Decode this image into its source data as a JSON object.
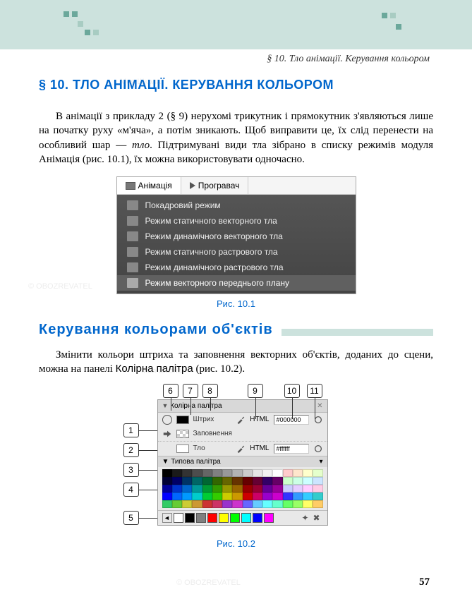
{
  "header": {
    "section_label": "§ 10. Тло анімації. Керування кольором"
  },
  "heading": "§ 10. ТЛО АНІМАЦІЇ. КЕРУВАННЯ КОЛЬОРОМ",
  "para1_a": "В анімації з прикладу 2 (§ 9) нерухомі трикутник і прямокут­ник з'являються лише на початку руху «м'яча», а потім зника­ють. Щоб виправити це, їх слід перенести на особливий шар — ",
  "para1_em": "тло",
  "para1_b": ". Підтримувані види тла зібрано в списку режимів модуля Анімація (рис. 10.1), їх можна використовувати одночасно.",
  "fig1": {
    "tabs": {
      "animation": "Анімація",
      "player": "Програвач"
    },
    "items": [
      "Покадровий режим",
      "Режим статичного векторного тла",
      "Режим динамічного векторного тла",
      "Режим статичного растрового тла",
      "Режим динамічного растрового тла",
      "Режим векторного переднього плану"
    ],
    "caption": "Рис. 10.1"
  },
  "sub_heading": "Керування кольорами об'єктів",
  "para2_a": "Змінити кольори штриха та заповнення векторних об'єктів, доданих до сцени, можна на панелі ",
  "para2_b": "Колірна палітра",
  "para2_c": " (рис. 10.2).",
  "fig2": {
    "panel_title": "Колірна палітра",
    "stroke_label": "Штрих",
    "fill_label": "Заповнення",
    "bg_label": "Тло",
    "html_label": "HTML",
    "html_value_stroke": "#000000",
    "html_value_bg": "#ffffff",
    "palette_title": "Типова палітра",
    "caption": "Рис. 10.2",
    "callouts": {
      "c1": "1",
      "c2": "2",
      "c3": "3",
      "c4": "4",
      "c5": "5",
      "c6": "6",
      "c7": "7",
      "c8": "8",
      "c9": "9",
      "c10": "10",
      "c11": "11"
    },
    "palette_colors": [
      "#000000",
      "#1a1a1a",
      "#333333",
      "#4d4d4d",
      "#666666",
      "#808080",
      "#999999",
      "#b3b3b3",
      "#cccccc",
      "#e6e6e6",
      "#f2f2f2",
      "#ffffff",
      "#ffcccc",
      "#ffe5cc",
      "#ffffcc",
      "#e5ffcc",
      "#000033",
      "#000066",
      "#003366",
      "#006666",
      "#006633",
      "#336600",
      "#666600",
      "#663300",
      "#660000",
      "#660033",
      "#330066",
      "#660066",
      "#ccffcc",
      "#ccffe5",
      "#ccffff",
      "#cce5ff",
      "#000099",
      "#0033cc",
      "#0066cc",
      "#009999",
      "#009933",
      "#339900",
      "#999900",
      "#996600",
      "#990000",
      "#990033",
      "#660099",
      "#990099",
      "#ccccff",
      "#e5ccff",
      "#ffccff",
      "#ffcce5",
      "#0000ff",
      "#0066ff",
      "#0099ff",
      "#00cccc",
      "#00cc33",
      "#33cc00",
      "#cccc00",
      "#cc9900",
      "#cc0000",
      "#cc0066",
      "#9900cc",
      "#cc00cc",
      "#3333ff",
      "#3399ff",
      "#33ccff",
      "#33cccc",
      "#33cc66",
      "#66cc33",
      "#cccc33",
      "#cc9933",
      "#cc3333",
      "#cc3366",
      "#9933cc",
      "#cc33cc",
      "#6666ff",
      "#66ccff",
      "#66ffff",
      "#66ffcc",
      "#66ff66",
      "#99ff66",
      "#ffff66",
      "#ffcc66"
    ],
    "bottom_colors": [
      "#ffffff",
      "#000000",
      "#808080",
      "#ff0000",
      "#ffff00",
      "#00ff00",
      "#00ffff",
      "#0000ff",
      "#ff00ff"
    ]
  },
  "page_number": "57"
}
